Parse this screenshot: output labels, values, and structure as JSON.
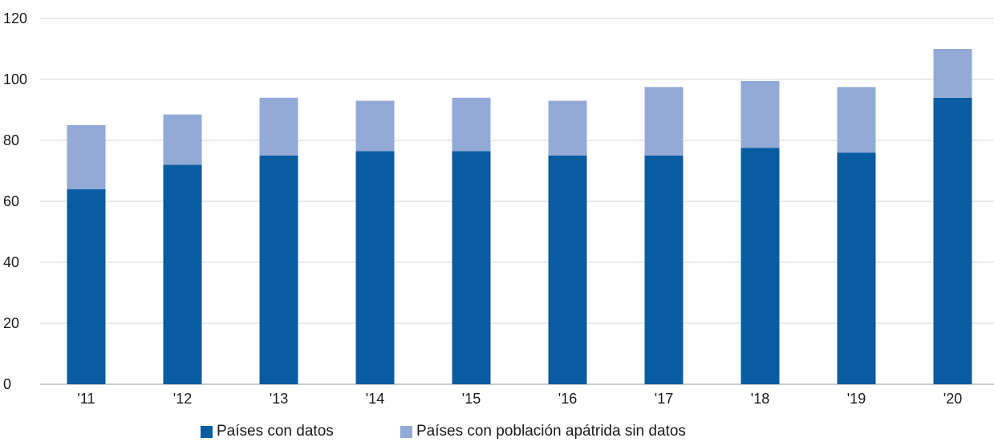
{
  "chart_data": {
    "type": "bar",
    "stacked": true,
    "categories": [
      "'11",
      "'12",
      "'13",
      "'14",
      "'15",
      "'16",
      "'17",
      "'18",
      "'19",
      "'20"
    ],
    "series": [
      {
        "name": "Países con datos",
        "color": "#0a5ca0",
        "values": [
          64,
          72,
          75,
          76.5,
          76.5,
          75,
          75,
          77.5,
          76,
          94
        ]
      },
      {
        "name": "Países con población apátrida sin datos",
        "color": "#93aad6",
        "values": [
          21,
          16.5,
          19,
          16.5,
          17.5,
          18,
          22.5,
          22,
          21.5,
          16
        ]
      }
    ],
    "ylim": [
      0,
      120
    ],
    "yticks": [
      0,
      20,
      40,
      60,
      80,
      100,
      120
    ],
    "grid": true,
    "legend_position": "bottom-center"
  }
}
